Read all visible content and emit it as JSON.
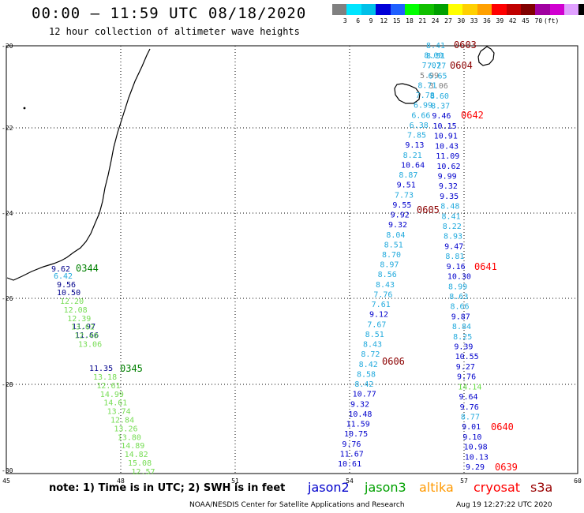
{
  "header": {
    "title": "00:00 — 11:59 UTC 08/18/2020",
    "subtitle": "12 hour collection of altimeter wave heights"
  },
  "legend": {
    "colors": [
      "#808080",
      "#00e5ff",
      "#00c0e8",
      "#0000d8",
      "#2060ff",
      "#00ff00",
      "#10c000",
      "#00a000",
      "#ffff00",
      "#ffd000",
      "#ffa000",
      "#ff0000",
      "#c00000",
      "#800000",
      "#a000a0",
      "#d000d0",
      "#e0a0ff",
      "#000000"
    ],
    "labels": [
      "3",
      "6",
      "9",
      "12",
      "15",
      "18",
      "21",
      "24",
      "27",
      "30",
      "33",
      "36",
      "39",
      "42",
      "45",
      "70",
      "(ft)"
    ]
  },
  "axes": {
    "x_ticks": [
      "45",
      "48",
      "51",
      "54",
      "57",
      "60"
    ],
    "y_ticks": [
      "-20",
      "-22",
      "-24",
      "-26",
      "-28",
      "-30"
    ]
  },
  "footer": {
    "note": "note: 1) Time is in UTC; 2) SWH is in feet",
    "credit": "NOAA/NESDIS Center for Satellite Applications and Research",
    "timestamp": "Aug 19 12:27:22 UTC 2020",
    "satellites": [
      {
        "label": "jason2",
        "color": "#0000cc"
      },
      {
        "label": "jason3",
        "color": "#00a000"
      },
      {
        "label": "altika",
        "color": "#ff9900"
      },
      {
        "label": "cryosat",
        "color": "#ff0000"
      },
      {
        "label": "s3a",
        "color": "#990000"
      }
    ]
  },
  "pass_times": [
    {
      "text": "0603",
      "color": "#8b0000"
    },
    {
      "text": "0604",
      "color": "#8b0000"
    },
    {
      "text": "0642",
      "color": "#ff0000"
    },
    {
      "text": "0605",
      "color": "#8b0000"
    },
    {
      "text": "0641",
      "color": "#ff0000"
    },
    {
      "text": "0344",
      "color": "#008000"
    },
    {
      "text": "0606",
      "color": "#8b0000"
    },
    {
      "text": "0345",
      "color": "#008000"
    },
    {
      "text": "0640",
      "color": "#ff0000"
    },
    {
      "text": "0639",
      "color": "#ff0000"
    }
  ],
  "tracks": {
    "west_jason3": {
      "color": "#77dd55",
      "values": [
        "12.20",
        "12.08",
        "12.39",
        "13.62",
        "12.40",
        "13.06",
        "13.18",
        "12.61",
        "14.99",
        "14.61",
        "13.74",
        "12.84",
        "13.26",
        "13.80",
        "14.89",
        "14.82",
        "15.08",
        "12.57"
      ]
    },
    "west_jason3_dark": {
      "color": "#00008b",
      "values": [
        "9.62",
        "6.42",
        "9.56",
        "10.50",
        "11.97",
        "11.66",
        "11.35"
      ]
    },
    "mid_track": {
      "values": [
        "8.41",
        "8.51",
        "8.00",
        "7.27",
        "7.07",
        "6.65",
        "5.99",
        "3.06",
        "8.71",
        "8.60",
        "7.78",
        "8.37",
        "6.99",
        "9.46",
        "6.66",
        "10.15",
        "6.38",
        "10.91",
        "7.85",
        "10.43",
        "9.13",
        "11.09",
        "8.21",
        "10.62",
        "10.64",
        "9.99",
        "8.87",
        "9.32",
        "9.51",
        "9.35",
        "7.73",
        "8.48",
        "9.55",
        "8.41",
        "9.92",
        "8.22",
        "9.32",
        "8.93",
        "8.04",
        "9.47",
        "8.51",
        "8.81",
        "8.70",
        "9.16",
        "8.97",
        "10.30",
        "8.56",
        "8.99",
        "8.43",
        "8.63",
        "7.76",
        "8.66",
        "7.61",
        "9.87",
        "9.12",
        "8.84",
        "7.67",
        "8.25",
        "8.51",
        "9.39",
        "8.43",
        "10.55",
        "8.72",
        "9.27",
        "8.42",
        "9.76",
        "8.58",
        "14.14",
        "8.42",
        "9.64",
        "10.77",
        "9.76",
        "9.32",
        "8.77",
        "10.48",
        "9.01",
        "11.59",
        "9.10",
        "10.75",
        "10.98",
        "9.76",
        "10.13",
        "11.67",
        "9.29",
        "10.61"
      ]
    }
  }
}
